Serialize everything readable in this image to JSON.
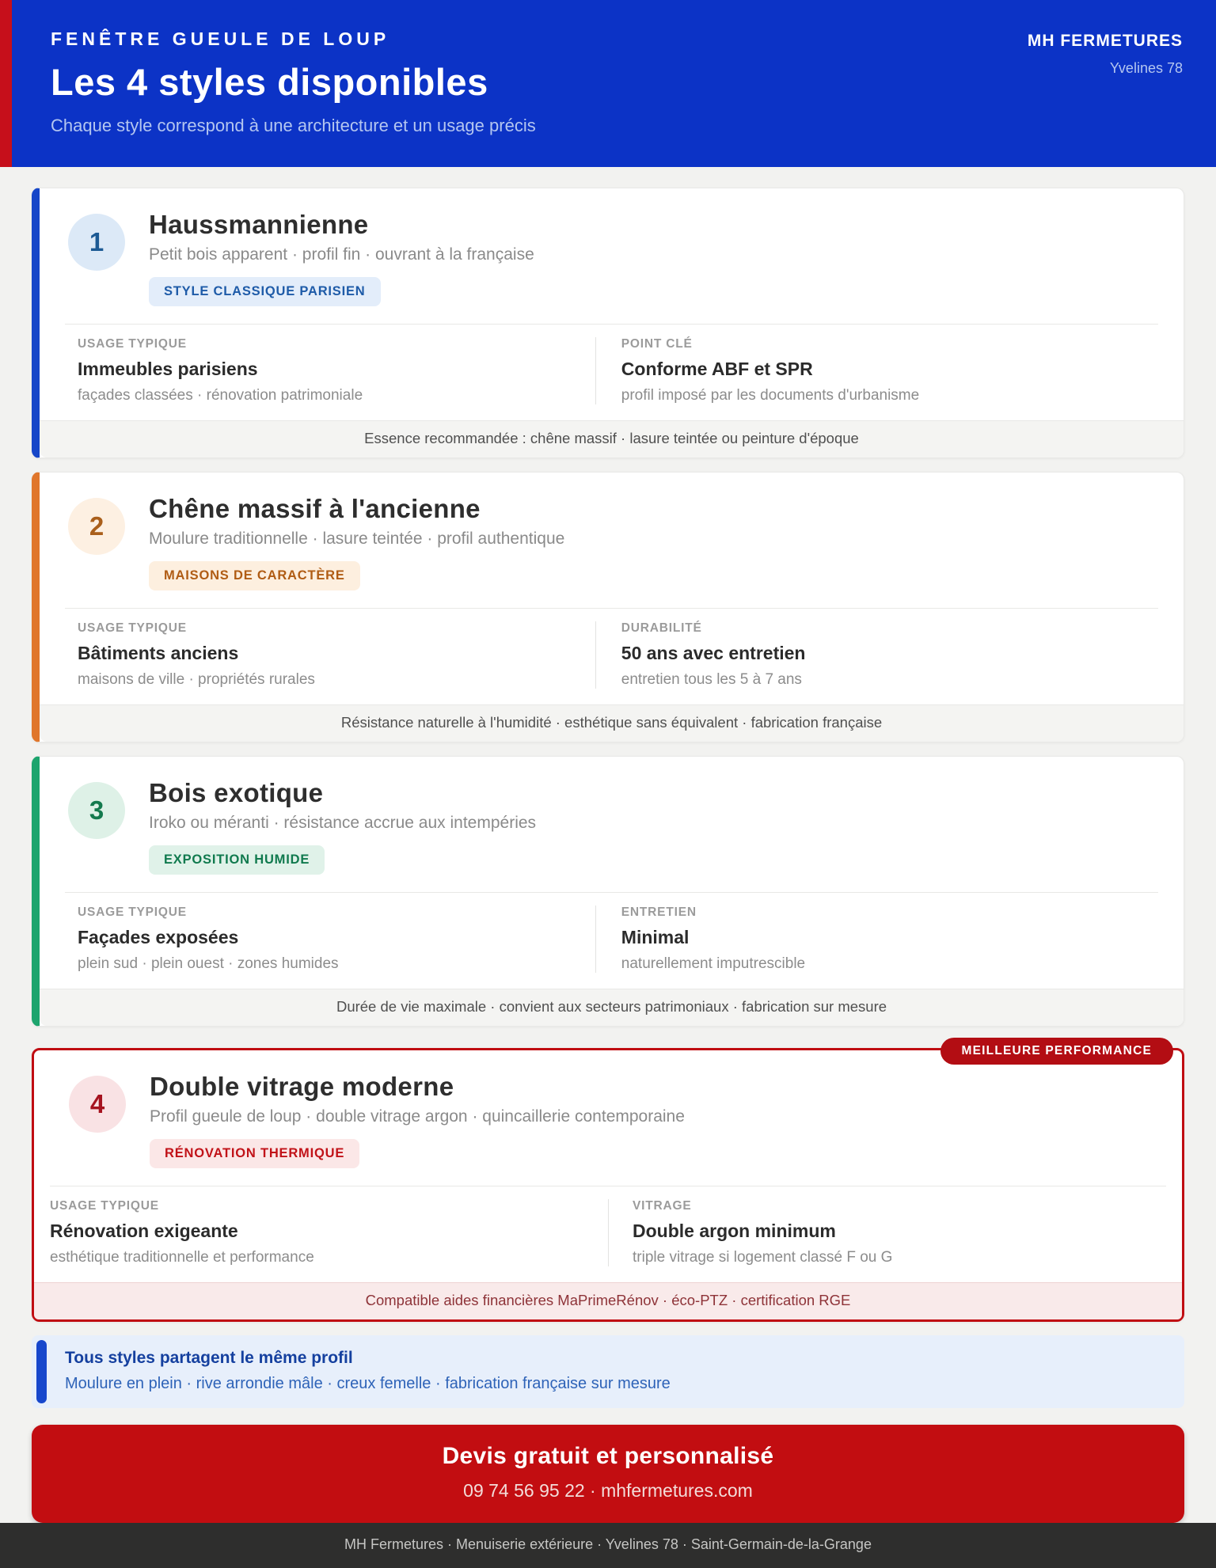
{
  "header": {
    "kicker": "FENÊTRE GUEULE DE LOUP",
    "title": "Les 4 styles disponibles",
    "subtitle": "Chaque style correspond à une architecture et un usage précis",
    "brand": "MH FERMETURES",
    "brand_sub": "Yvelines 78",
    "bg": "#0c33c6",
    "stripe": "#c60f1b"
  },
  "performance_badge": {
    "label": "MEILLEURE PERFORMANCE",
    "bg": "#b30d13"
  },
  "cards": [
    {
      "number": "1",
      "title": "Haussmannienne",
      "subtitle": "Petit bois apparent · profil fin · ouvrant à la française",
      "tag": "STYLE CLASSIQUE PARISIEN",
      "col1_label": "USAGE TYPIQUE",
      "col1_value": "Immeubles parisiens",
      "col1_note": "façades classées · rénovation patrimoniale",
      "col2_label": "POINT CLÉ",
      "col2_value": "Conforme ABF et SPR",
      "col2_note": "profil imposé par les documents d'urbanisme",
      "footer": "Essence recommandée : chêne massif · lasure teintée ou peinture d'époque",
      "colors": {
        "accent": "#1646c8",
        "num_bg": "#dce9f7",
        "num_fg": "#1c5a94",
        "tag_bg": "#e3edfa",
        "tag_fg": "#1e5ba8",
        "foot_bg": "#f4f4f2",
        "foot_fg": "#4f4f4f",
        "foot_border": "#e8e8e6"
      }
    },
    {
      "number": "2",
      "title": "Chêne massif à l'ancienne",
      "subtitle": "Moulure traditionnelle · lasure teintée · profil authentique",
      "tag": "MAISONS DE CARACTÈRE",
      "col1_label": "USAGE TYPIQUE",
      "col1_value": "Bâtiments anciens",
      "col1_note": "maisons de ville · propriétés rurales",
      "col2_label": "DURABILITÉ",
      "col2_value": "50 ans avec entretien",
      "col2_note": "entretien tous les 5 à 7 ans",
      "footer": "Résistance naturelle à l'humidité · esthétique sans équivalent · fabrication française",
      "colors": {
        "accent": "#e0762b",
        "num_bg": "#fdf0e2",
        "num_fg": "#aa5f1b",
        "tag_bg": "#fdefdf",
        "tag_fg": "#b05c14",
        "foot_bg": "#f4f4f2",
        "foot_fg": "#4f4f4f",
        "foot_border": "#e8e8e6"
      }
    },
    {
      "number": "3",
      "title": "Bois exotique",
      "subtitle": "Iroko ou méranti · résistance accrue aux intempéries",
      "tag": "EXPOSITION HUMIDE",
      "col1_label": "USAGE TYPIQUE",
      "col1_value": "Façades exposées",
      "col1_note": "plein sud · plein ouest · zones humides",
      "col2_label": "ENTRETIEN",
      "col2_value": "Minimal",
      "col2_note": "naturellement imputrescible",
      "footer": "Durée de vie maximale · convient aux secteurs patrimoniaux · fabrication sur mesure",
      "colors": {
        "accent": "#1da46d",
        "num_bg": "#def1e7",
        "num_fg": "#147a4e",
        "tag_bg": "#e0f2e9",
        "tag_fg": "#107a4e",
        "foot_bg": "#f4f4f2",
        "foot_fg": "#4f4f4f",
        "foot_border": "#e8e8e6"
      }
    },
    {
      "number": "4",
      "title": "Double vitrage moderne",
      "subtitle": "Profil gueule de loup · double vitrage argon · quincaillerie contemporaine",
      "tag": "RÉNOVATION THERMIQUE",
      "col1_label": "USAGE TYPIQUE",
      "col1_value": "Rénovation exigeante",
      "col1_note": "esthétique traditionnelle et performance",
      "col2_label": "VITRAGE",
      "col2_value": "Double argon minimum",
      "col2_note": "triple vitrage si logement classé F ou G",
      "footer": "Compatible aides financières MaPrimeRénov · éco-PTZ · certification RGE",
      "colors": {
        "accent": "#c00d12",
        "num_bg": "#f9e2e4",
        "num_fg": "#a6131f",
        "tag_bg": "#fbe7e7",
        "tag_fg": "#c11218",
        "foot_bg": "#f9eaea",
        "foot_fg": "#8e3338",
        "foot_border": "#eed2d2"
      }
    }
  ],
  "shared": {
    "title": "Tous styles partagent le même profil",
    "text": "Moulure en plein · rive arrondie mâle · creux femelle · fabrication française sur mesure",
    "accent": "#1747cc",
    "bg": "#e7effb"
  },
  "cta": {
    "title": "Devis gratuit et personnalisé",
    "contact": "09 74 56 95 22 · mhfermetures.com",
    "bg": "#c20d11"
  },
  "page_footer": {
    "text": "MH Fermetures · Menuiserie extérieure · Yvelines 78 · Saint-Germain-de-la-Grange",
    "bg": "#2e2e2d"
  }
}
